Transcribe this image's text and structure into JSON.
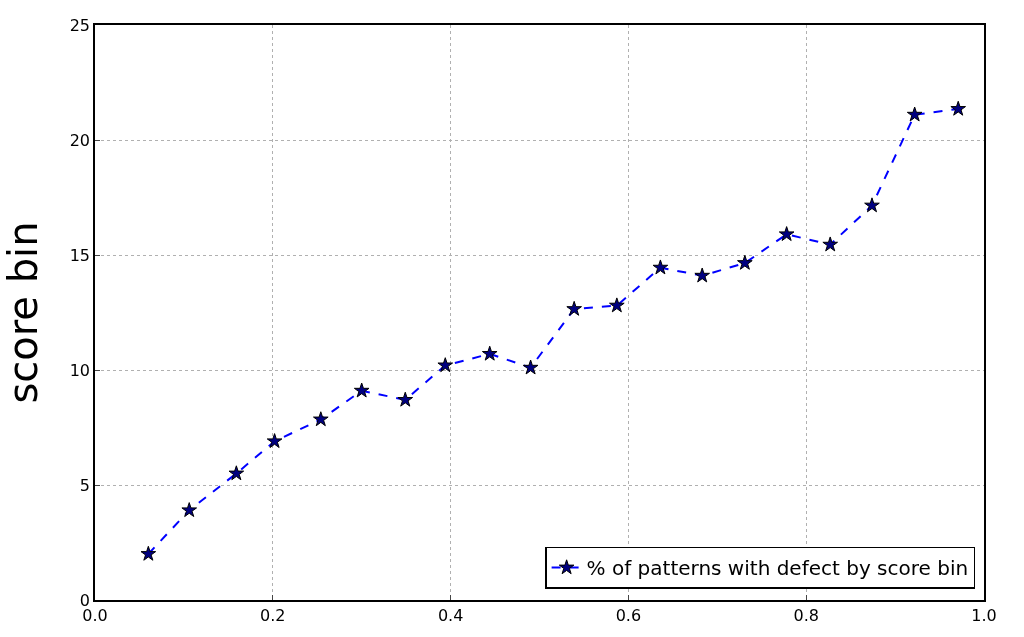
{
  "chart_data": {
    "type": "line",
    "ylabel": "score bin",
    "x": [
      0.06,
      0.106,
      0.159,
      0.202,
      0.254,
      0.3,
      0.349,
      0.394,
      0.444,
      0.49,
      0.539,
      0.587,
      0.636,
      0.683,
      0.731,
      0.778,
      0.827,
      0.874,
      0.922,
      0.971
    ],
    "series": [
      {
        "name": "% of patterns with defect by score bin",
        "color": "#0000ff",
        "values": [
          2.0,
          3.9,
          5.5,
          6.9,
          7.85,
          9.1,
          8.7,
          10.2,
          10.7,
          10.1,
          12.65,
          12.8,
          14.45,
          14.1,
          14.65,
          15.9,
          15.45,
          17.15,
          21.1,
          21.35
        ]
      }
    ],
    "xlim": [
      0,
      1
    ],
    "xticks": [
      {
        "value": 0,
        "label": "0.0"
      },
      0.2,
      0.4,
      0.6,
      0.8,
      {
        "value": 1,
        "label": "1.0"
      }
    ],
    "ylim": [
      0,
      25
    ],
    "yticks": [
      0,
      5,
      10,
      15,
      20,
      25
    ],
    "grid": true,
    "legend": "bottom right",
    "marker": "star",
    "line_style": "dashed"
  }
}
